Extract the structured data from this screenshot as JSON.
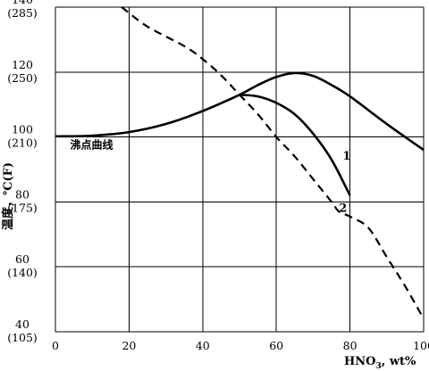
{
  "chart_data": {
    "type": "line",
    "xlabel": "HNO3, wt%",
    "xlabel_parts": {
      "base": "HNO",
      "sub": "3",
      "rest": ", wt%"
    },
    "ylabel": "温度，℃(F)",
    "xlim": [
      0,
      100
    ],
    "ylim": [
      40,
      140
    ],
    "x_ticks": [
      {
        "value": 0,
        "label": "0"
      },
      {
        "value": 20,
        "label": "20"
      },
      {
        "value": 40,
        "label": "40"
      },
      {
        "value": 60,
        "label": "60"
      },
      {
        "value": 80,
        "label": "80"
      },
      {
        "value": 100,
        "label": "100"
      }
    ],
    "y_ticks": [
      {
        "value": 140,
        "label": "140",
        "sub": "(285)"
      },
      {
        "value": 120,
        "label": "120",
        "sub": "(250)"
      },
      {
        "value": 100,
        "label": "100",
        "sub": "(210)"
      },
      {
        "value": 80,
        "label": "80",
        "sub": "(175)"
      },
      {
        "value": 60,
        "label": "60",
        "sub": "(140)"
      },
      {
        "value": 40,
        "label": "40",
        "sub": "(105)"
      }
    ],
    "grid": true,
    "annotations": [
      {
        "text": "沸点曲线",
        "x": 4,
        "y": 96.5
      },
      {
        "text": "1",
        "x": 78,
        "y": 93
      },
      {
        "text": "2",
        "x": 77,
        "y": 77
      }
    ],
    "series": [
      {
        "style": "solid",
        "points": [
          [
            0,
            100.2
          ],
          [
            10,
            100.4
          ],
          [
            20,
            101.5
          ],
          [
            30,
            104
          ],
          [
            40,
            108
          ],
          [
            50,
            113
          ],
          [
            55,
            116
          ],
          [
            60,
            118.5
          ],
          [
            65,
            119.7
          ],
          [
            70,
            118.8
          ],
          [
            75,
            116
          ],
          [
            80,
            112.5
          ],
          [
            90,
            104
          ],
          [
            100,
            96
          ]
        ]
      },
      {
        "style": "solid",
        "points": [
          [
            50,
            113
          ],
          [
            55,
            112.5
          ],
          [
            60,
            110.5
          ],
          [
            65,
            107
          ],
          [
            70,
            101
          ],
          [
            75,
            93
          ],
          [
            80,
            82
          ]
        ]
      },
      {
        "style": "dashed",
        "points": [
          [
            18,
            140
          ],
          [
            25,
            134
          ],
          [
            35,
            128
          ],
          [
            40,
            124
          ],
          [
            45,
            119
          ],
          [
            50,
            113
          ],
          [
            55,
            107
          ],
          [
            60,
            100
          ],
          [
            65,
            94
          ],
          [
            70,
            87
          ],
          [
            75,
            80
          ],
          [
            77,
            77
          ],
          [
            80,
            75.5
          ],
          [
            85,
            72
          ],
          [
            90,
            63
          ],
          [
            95,
            54
          ],
          [
            100,
            44
          ]
        ]
      }
    ]
  }
}
